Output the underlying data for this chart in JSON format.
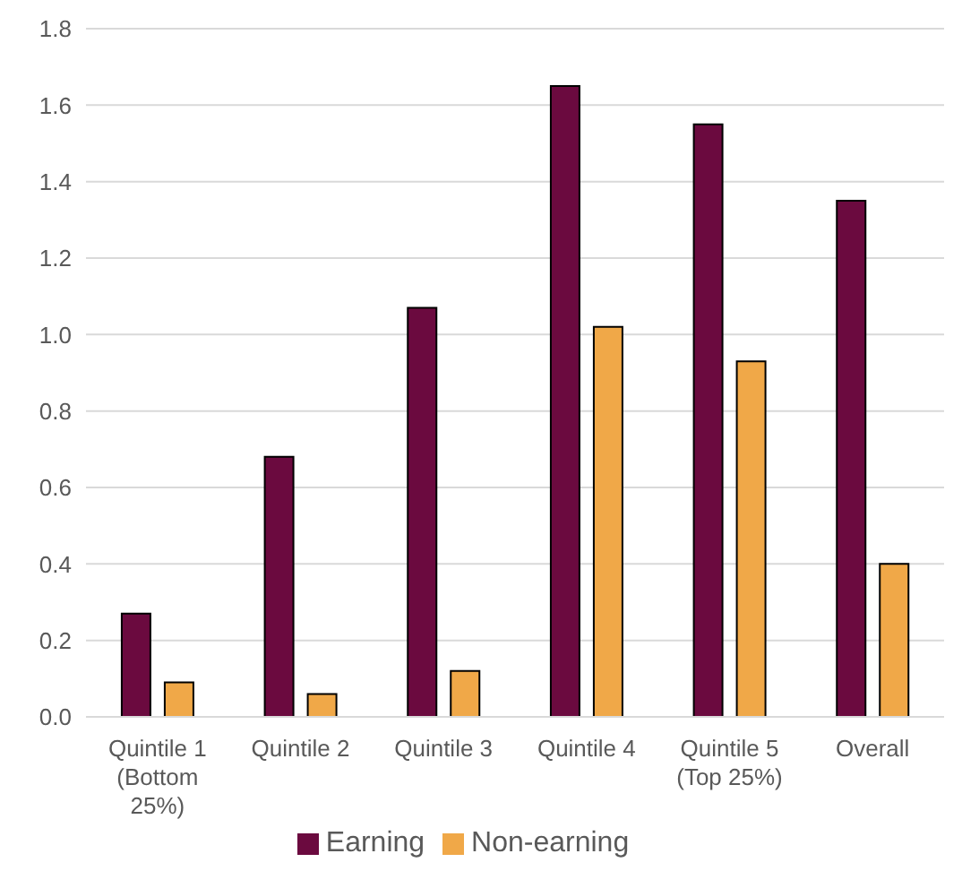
{
  "chart_data": {
    "type": "bar",
    "categories": [
      "Quintile 1 (Bottom 25%)",
      "Quintile 2",
      "Quintile 3",
      "Quintile 4",
      "Quintile 5 (Top 25%)",
      "Overall"
    ],
    "series": [
      {
        "name": "Earning",
        "color": "#6b0a3f",
        "values": [
          0.27,
          0.68,
          1.07,
          1.65,
          1.55,
          1.35
        ]
      },
      {
        "name": "Non-earning",
        "color": "#f0a848",
        "values": [
          0.09,
          0.06,
          0.12,
          1.02,
          0.93,
          0.4
        ]
      }
    ],
    "ylim": [
      0,
      1.8
    ],
    "yticks": [
      {
        "value": 0,
        "label": "0.0"
      },
      {
        "value": 0.2,
        "label": "0.2"
      },
      {
        "value": 0.4,
        "label": "0.4"
      },
      {
        "value": 0.6,
        "label": "0.6"
      },
      {
        "value": 0.8,
        "label": "0.8"
      },
      {
        "value": 1,
        "label": "1.0"
      },
      {
        "value": 1.2,
        "label": "1.2"
      },
      {
        "value": 1.4,
        "label": "1.4"
      },
      {
        "value": 1.6,
        "label": "1.6"
      },
      {
        "value": 1.8,
        "label": "1.8"
      }
    ],
    "grid": "y",
    "legend": "bottom"
  }
}
